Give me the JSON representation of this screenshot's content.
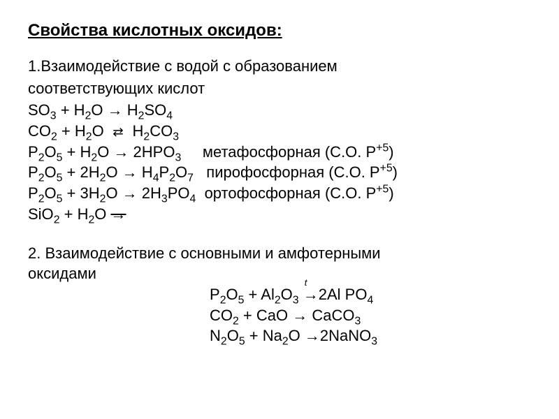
{
  "title": "Свойства кислотных оксидов:",
  "section1": {
    "heading": "1.Взаимодействие с водой с образованием соответствующих кислот",
    "eq1": {
      "lhs_a": "SO",
      "lhs_a_sub": "3",
      "plus": " + H",
      "h_sub": "2",
      "o": "O → H",
      "rhs_sub1": "2",
      "rhs_mid": "SO",
      "rhs_sub2": "4"
    },
    "eq2": {
      "pre": "CO",
      "s1": "2",
      "mid1": " + H",
      "s2": "2",
      "mid2": "O ",
      "arrow": "eq",
      "post": " H",
      "s3": "2",
      "post2": "CO",
      "s4": "3"
    },
    "eq3_line": "P₂O₅ + H₂O → 2HPO₃",
    "eq3_note": "метафосфорная (С.О. Р",
    "eq3_sup": "+5",
    "eq3_close": ")",
    "eq4_line": "P₂O₅ + 2H₂O → H₄P₂O₇",
    "eq4_note": "пирофосфорная (С.О. Р",
    "eq4_sup": "+5",
    "eq4_close": ")",
    "eq5_line": "P₂O₅ + 3H₂O → 2H₃PO₄",
    "eq5_note": "ортофосфорная (С.О. Р",
    "eq5_sup": "+5",
    "eq5_close": ")",
    "eq6_pre": "SiO",
    "eq6_s1": "2",
    "eq6_mid": " + H",
    "eq6_s2": "2",
    "eq6_post": "O ",
    "eq6_arrow": "→"
  },
  "section2": {
    "heading": "2. Взаимодействие с основными и амфотерными оксидами",
    "eqA": {
      "txt": "P₂O₅ + Al₂O₃ ",
      "arrow_t": "→",
      "t": "t",
      "rhs": "2Al PO₄"
    },
    "eqB": "CO₂ + CaO → CaCO₃",
    "eqC": "N₂O₅ + Na₂O →2NaNO₃"
  },
  "style": {
    "text_color": "#000000",
    "background": "#ffffff",
    "title_fontsize": 24,
    "body_fontsize": 22,
    "font_family": "Arial"
  }
}
